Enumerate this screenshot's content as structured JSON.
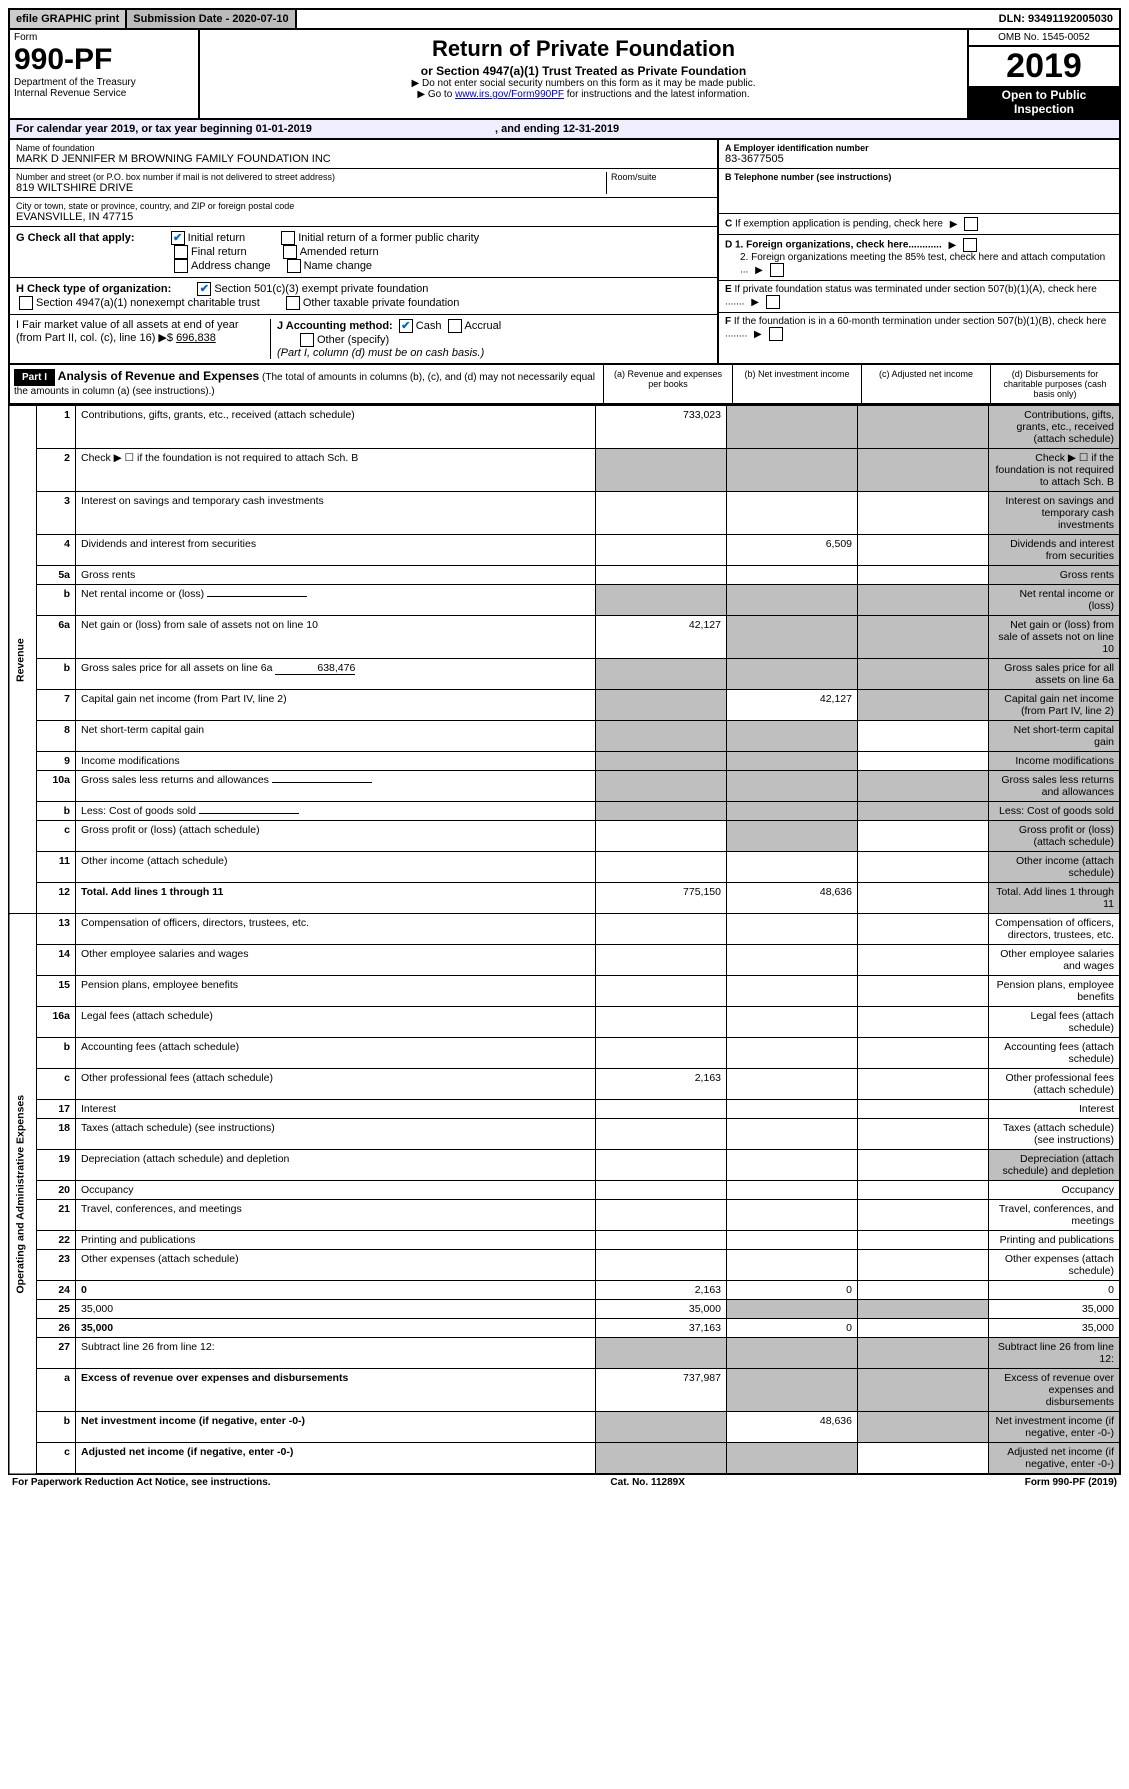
{
  "top": {
    "efile": "efile GRAPHIC print",
    "submission": "Submission Date - 2020-07-10",
    "dln": "DLN: 93491192005030"
  },
  "header": {
    "form_label": "Form",
    "form_number": "990-PF",
    "dept": "Department of the Treasury",
    "irs": "Internal Revenue Service",
    "title": "Return of Private Foundation",
    "subtitle": "or Section 4947(a)(1) Trust Treated as Private Foundation",
    "instr1": "▶ Do not enter social security numbers on this form as it may be made public.",
    "instr2": "▶ Go to ",
    "instr2_link": "www.irs.gov/Form990PF",
    "instr2_tail": " for instructions and the latest information.",
    "omb": "OMB No. 1545-0052",
    "year": "2019",
    "open": "Open to Public Inspection"
  },
  "calyear": "For calendar year 2019, or tax year beginning 01-01-2019",
  "calyear_end": ", and ending 12-31-2019",
  "info": {
    "name_lbl": "Name of foundation",
    "name": "MARK D JENNIFER M BROWNING FAMILY FOUNDATION INC",
    "ein_lbl": "A Employer identification number",
    "ein": "83-3677505",
    "addr_lbl": "Number and street (or P.O. box number if mail is not delivered to street address)",
    "room_lbl": "Room/suite",
    "addr": "819 WILTSHIRE DRIVE",
    "tel_lbl": "B Telephone number (see instructions)",
    "city_lbl": "City or town, state or province, country, and ZIP or foreign postal code",
    "city": "EVANSVILLE, IN  47715",
    "c_lbl": "C If exemption application is pending, check here",
    "g_lbl": "G Check all that apply:",
    "g_initial": "Initial return",
    "g_initial_former": "Initial return of a former public charity",
    "g_final": "Final return",
    "g_amended": "Amended return",
    "g_addr": "Address change",
    "g_name": "Name change",
    "d1": "D 1. Foreign organizations, check here............",
    "d2": "2. Foreign organizations meeting the 85% test, check here and attach computation ...",
    "h_lbl": "H Check type of organization:",
    "h_501": "Section 501(c)(3) exempt private foundation",
    "h_4947": "Section 4947(a)(1) nonexempt charitable trust",
    "h_other": "Other taxable private foundation",
    "e_lbl": "E  If private foundation status was terminated under section 507(b)(1)(A), check here .......",
    "i_lbl": "I Fair market value of all assets at end of year (from Part II, col. (c), line 16) ▶$",
    "i_val": "696,838",
    "j_lbl": "J Accounting method:",
    "j_cash": "Cash",
    "j_accrual": "Accrual",
    "j_other": "Other (specify)",
    "j_note": "(Part I, column (d) must be on cash basis.)",
    "f_lbl": "F  If the foundation is in a 60-month termination under section 507(b)(1)(B), check here ........"
  },
  "part1": {
    "label": "Part I",
    "title": "Analysis of Revenue and Expenses",
    "note": "(The total of amounts in columns (b), (c), and (d) may not necessarily equal the amounts in column (a) (see instructions).)",
    "col_a": "(a)   Revenue and expenses per books",
    "col_b": "(b)  Net investment income",
    "col_c": "(c)  Adjusted net income",
    "col_d": "(d)  Disbursements for charitable purposes (cash basis only)"
  },
  "sections": {
    "revenue": "Revenue",
    "opex": "Operating and Administrative Expenses"
  },
  "lines": [
    {
      "n": "1",
      "d": "Contributions, gifts, grants, etc., received (attach schedule)",
      "a": "733,023",
      "b_shade": true,
      "c_shade": true,
      "d_shade": true
    },
    {
      "n": "2",
      "d": "Check ▶ ☐ if the foundation is not required to attach Sch. B",
      "a_shade": true,
      "b_shade": true,
      "c_shade": true,
      "d_shade": true,
      "d_bold": [
        "not"
      ]
    },
    {
      "n": "3",
      "d": "Interest on savings and temporary cash investments",
      "c_shade": false,
      "d_shade": true
    },
    {
      "n": "4",
      "d": "Dividends and interest from securities",
      "b": "6,509",
      "d_shade": true
    },
    {
      "n": "5a",
      "d": "Gross rents",
      "d_shade": true
    },
    {
      "n": "b",
      "d": "Net rental income or (loss)",
      "inline": true,
      "a_shade": true,
      "b_shade": true,
      "c_shade": true,
      "d_shade": true
    },
    {
      "n": "6a",
      "d": "Net gain or (loss) from sale of assets not on line 10",
      "a": "42,127",
      "b_shade": true,
      "c_shade": true,
      "d_shade": true
    },
    {
      "n": "b",
      "d": "Gross sales price for all assets on line 6a",
      "inline_val": "638,476",
      "a_shade": true,
      "b_shade": true,
      "c_shade": true,
      "d_shade": true
    },
    {
      "n": "7",
      "d": "Capital gain net income (from Part IV, line 2)",
      "a_shade": true,
      "b": "42,127",
      "c_shade": true,
      "d_shade": true
    },
    {
      "n": "8",
      "d": "Net short-term capital gain",
      "a_shade": true,
      "b_shade": true,
      "d_shade": true
    },
    {
      "n": "9",
      "d": "Income modifications",
      "a_shade": true,
      "b_shade": true,
      "d_shade": true
    },
    {
      "n": "10a",
      "d": "Gross sales less returns and allowances",
      "inline": true,
      "a_shade": true,
      "b_shade": true,
      "c_shade": true,
      "d_shade": true
    },
    {
      "n": "b",
      "d": "Less: Cost of goods sold",
      "inline": true,
      "a_shade": true,
      "b_shade": true,
      "c_shade": true,
      "d_shade": true
    },
    {
      "n": "c",
      "d": "Gross profit or (loss) (attach schedule)",
      "b_shade": true,
      "d_shade": true
    },
    {
      "n": "11",
      "d": "Other income (attach schedule)",
      "d_shade": true
    },
    {
      "n": "12",
      "d": "Total. Add lines 1 through 11",
      "bold": true,
      "a": "775,150",
      "b": "48,636",
      "d_shade": true
    }
  ],
  "oplines": [
    {
      "n": "13",
      "d": "Compensation of officers, directors, trustees, etc."
    },
    {
      "n": "14",
      "d": "Other employee salaries and wages"
    },
    {
      "n": "15",
      "d": "Pension plans, employee benefits"
    },
    {
      "n": "16a",
      "d": "Legal fees (attach schedule)"
    },
    {
      "n": "b",
      "d": "Accounting fees (attach schedule)"
    },
    {
      "n": "c",
      "d": "Other professional fees (attach schedule)",
      "a": "2,163"
    },
    {
      "n": "17",
      "d": "Interest"
    },
    {
      "n": "18",
      "d": "Taxes (attach schedule) (see instructions)"
    },
    {
      "n": "19",
      "d": "Depreciation (attach schedule) and depletion",
      "d_shade": true
    },
    {
      "n": "20",
      "d": "Occupancy"
    },
    {
      "n": "21",
      "d": "Travel, conferences, and meetings"
    },
    {
      "n": "22",
      "d": "Printing and publications"
    },
    {
      "n": "23",
      "d": "Other expenses (attach schedule)"
    },
    {
      "n": "24",
      "d": "0",
      "bold": true,
      "a": "2,163",
      "b": "0"
    },
    {
      "n": "25",
      "d": "35,000",
      "a": "35,000",
      "b_shade": true,
      "c_shade": true
    },
    {
      "n": "26",
      "d": "35,000",
      "bold": true,
      "a": "37,163",
      "b": "0"
    },
    {
      "n": "27",
      "d": "Subtract line 26 from line 12:",
      "a_shade": true,
      "b_shade": true,
      "c_shade": true,
      "d_shade": true
    },
    {
      "n": "a",
      "d": "Excess of revenue over expenses and disbursements",
      "bold": true,
      "a": "737,987",
      "b_shade": true,
      "c_shade": true,
      "d_shade": true
    },
    {
      "n": "b",
      "d": "Net investment income (if negative, enter -0-)",
      "bold": true,
      "a_shade": true,
      "b": "48,636",
      "c_shade": true,
      "d_shade": true
    },
    {
      "n": "c",
      "d": "Adjusted net income (if negative, enter -0-)",
      "bold": true,
      "a_shade": true,
      "b_shade": true,
      "d_shade": true
    }
  ],
  "footer": {
    "left": "For Paperwork Reduction Act Notice, see instructions.",
    "mid": "Cat. No. 11289X",
    "right": "Form 990-PF (2019)"
  }
}
